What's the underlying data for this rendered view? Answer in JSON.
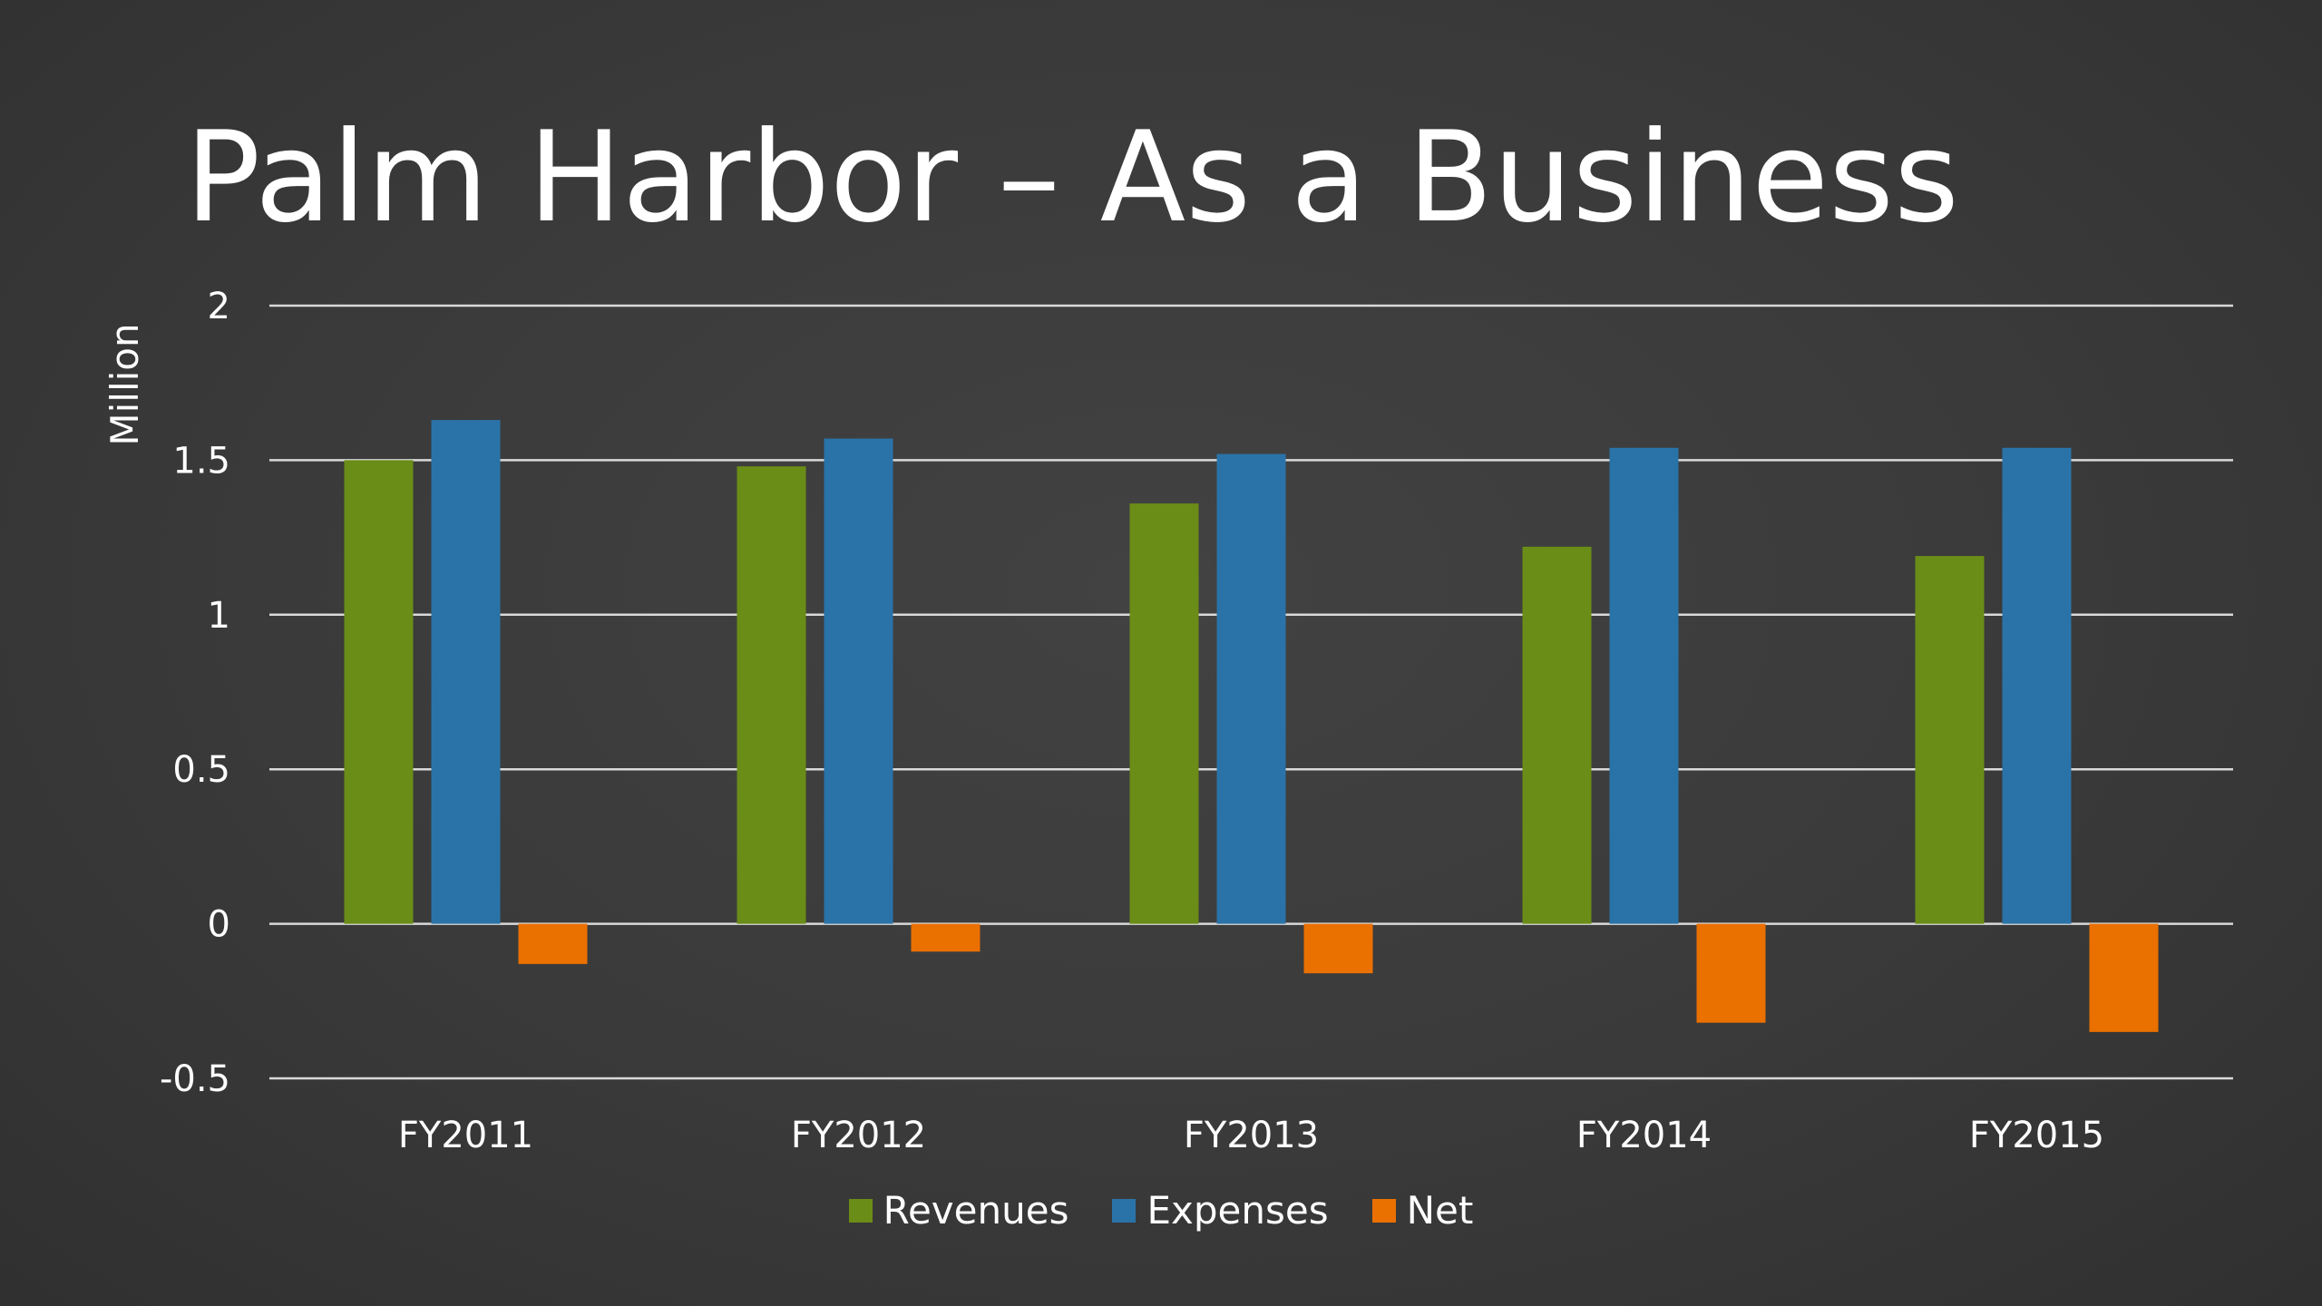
{
  "slide": {
    "title": "Palm Harbor – As a Business"
  },
  "chart_data": {
    "type": "bar",
    "categories": [
      "FY2011",
      "FY2012",
      "FY2013",
      "FY2014",
      "FY2015"
    ],
    "series": [
      {
        "name": "Revenues",
        "color": "#6a8d17",
        "values": [
          1.5,
          1.48,
          1.36,
          1.22,
          1.19
        ]
      },
      {
        "name": "Expenses",
        "color": "#2a73a8",
        "values": [
          1.63,
          1.57,
          1.52,
          1.54,
          1.54
        ]
      },
      {
        "name": "Net",
        "color": "#ea7000",
        "values": [
          -0.13,
          -0.09,
          -0.16,
          -0.32,
          -0.35
        ]
      }
    ],
    "ylabel": "Million",
    "xlabel": "",
    "ylim": [
      -0.5,
      2
    ],
    "yticks": [
      "2",
      "1.5",
      "1",
      "0.5",
      "0",
      "-0.5"
    ],
    "ytick_values": [
      2,
      1.5,
      1,
      0.5,
      0,
      -0.5
    ],
    "grid": true,
    "legend": "bottom-center"
  }
}
